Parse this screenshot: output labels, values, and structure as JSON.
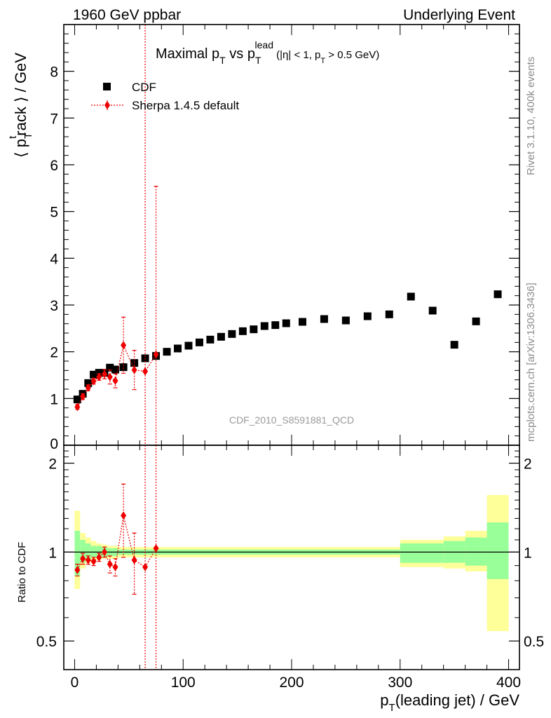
{
  "header": {
    "left": "1960 GeV ppbar",
    "right": "Underlying Event"
  },
  "side_labels": {
    "rivet": "Rivet 3.1.10,  400k events",
    "mcplots": "mcplots.cern.ch [arXiv:1306.3436]"
  },
  "chart_data": [
    {
      "type": "scatter",
      "title": {
        "prefix": "Maximal p",
        "sub1": "T",
        "mid": " vs p",
        "sub2": "T",
        "sup2": "lead",
        "cut": " (|η| < 1, p",
        "sub3": "T",
        "cut_end": " > 0.5 GeV)"
      },
      "ylabel": {
        "open": "⟨ p",
        "sub": "T",
        "sup": "t",
        "rest": "rack ⟩ / GeV"
      },
      "watermark": "CDF_2010_S8591881_QCD",
      "xlim": [
        -10,
        410
      ],
      "ylim": [
        0,
        9
      ],
      "yticks": [
        "1",
        "2",
        "3",
        "4",
        "5",
        "6",
        "7",
        "8"
      ],
      "ytick_values": [
        1,
        2,
        3,
        4,
        5,
        6,
        7,
        8
      ],
      "ytick_bottom_label": "0",
      "legend": {
        "position": "top-left",
        "entries": [
          "CDF",
          "Sherpa 1.4.5 default"
        ]
      },
      "series": [
        {
          "name": "CDF",
          "marker": "square",
          "color": "#000000",
          "x": [
            2.5,
            7.5,
            12.5,
            17.5,
            22.5,
            27.5,
            32.5,
            37.5,
            45,
            55,
            65,
            75,
            85,
            95,
            105,
            115,
            125,
            135,
            145,
            155,
            165,
            175,
            185,
            195,
            210,
            230,
            250,
            270,
            290,
            310,
            330,
            350,
            370,
            390
          ],
          "y": [
            0.98,
            1.1,
            1.33,
            1.51,
            1.55,
            1.55,
            1.66,
            1.62,
            1.67,
            1.76,
            1.86,
            1.91,
            2.0,
            2.07,
            2.13,
            2.2,
            2.26,
            2.32,
            2.38,
            2.44,
            2.48,
            2.55,
            2.57,
            2.61,
            2.64,
            2.7,
            2.67,
            2.76,
            2.8,
            3.18,
            2.88,
            2.15,
            2.65,
            3.23
          ]
        },
        {
          "name": "Sherpa 1.4.5 default",
          "marker": "diamond",
          "color": "#ee0000",
          "x": [
            2.5,
            7.5,
            12.5,
            17.5,
            22.5,
            27.5,
            32.5,
            37.5,
            45,
            55,
            65,
            75
          ],
          "y": [
            0.82,
            1.04,
            1.23,
            1.37,
            1.46,
            1.52,
            1.46,
            1.38,
            2.14,
            1.61,
            1.58,
            1.94
          ],
          "yerr": [
            0.05,
            0.06,
            0.06,
            0.06,
            0.07,
            0.1,
            0.15,
            0.15,
            0.6,
            0.42,
            30,
            3.6
          ]
        }
      ]
    },
    {
      "type": "scatter",
      "ylabel": "Ratio to CDF",
      "xlabel": {
        "main": "p",
        "sub": "T",
        "rest": "(leading jet) / GeV"
      },
      "xlim": [
        -10,
        410
      ],
      "ylim": [
        0.4,
        2.3
      ],
      "yscale": "log",
      "xticks": [
        "0",
        "100",
        "200",
        "300",
        "400"
      ],
      "xtick_values": [
        0,
        100,
        200,
        300,
        400
      ],
      "yticks": [
        "0.5",
        "1",
        "2"
      ],
      "ytick_values": [
        0.5,
        1,
        2
      ],
      "reference_line": 1,
      "bands": {
        "inner_color": "#99ff99",
        "outer_color": "#ffff99",
        "bins": [
          {
            "lo": 0,
            "hi": 5,
            "inner": [
              0.83,
              1.18
            ],
            "outer": [
              0.75,
              1.38
            ]
          },
          {
            "lo": 5,
            "hi": 10,
            "inner": [
              0.92,
              1.1
            ],
            "outer": [
              0.88,
              1.16
            ]
          },
          {
            "lo": 10,
            "hi": 15,
            "inner": [
              0.95,
              1.07
            ],
            "outer": [
              0.92,
              1.12
            ]
          },
          {
            "lo": 15,
            "hi": 20,
            "inner": [
              0.96,
              1.05
            ],
            "outer": [
              0.94,
              1.09
            ]
          },
          {
            "lo": 20,
            "hi": 25,
            "inner": [
              0.96,
              1.05
            ],
            "outer": [
              0.94,
              1.07
            ]
          },
          {
            "lo": 25,
            "hi": 30,
            "inner": [
              0.96,
              1.04
            ],
            "outer": [
              0.95,
              1.06
            ]
          },
          {
            "lo": 30,
            "hi": 35,
            "inner": [
              0.97,
              1.03
            ],
            "outer": [
              0.95,
              1.05
            ]
          },
          {
            "lo": 35,
            "hi": 40,
            "inner": [
              0.97,
              1.03
            ],
            "outer": [
              0.95,
              1.05
            ]
          },
          {
            "lo": 40,
            "hi": 300,
            "inner": [
              0.98,
              1.02
            ],
            "outer": [
              0.96,
              1.04
            ]
          },
          {
            "lo": 300,
            "hi": 340,
            "inner": [
              0.92,
              1.07
            ],
            "outer": [
              0.89,
              1.1
            ]
          },
          {
            "lo": 340,
            "hi": 360,
            "inner": [
              0.92,
              1.09
            ],
            "outer": [
              0.88,
              1.13
            ]
          },
          {
            "lo": 360,
            "hi": 380,
            "inner": [
              0.9,
              1.12
            ],
            "outer": [
              0.86,
              1.18
            ]
          },
          {
            "lo": 380,
            "hi": 400,
            "inner": [
              0.81,
              1.26
            ],
            "outer": [
              0.54,
              1.56
            ]
          }
        ]
      },
      "series": [
        {
          "name": "Sherpa 1.4.5 default",
          "marker": "diamond",
          "color": "#ee0000",
          "x": [
            2.5,
            7.5,
            12.5,
            17.5,
            22.5,
            27.5,
            32.5,
            37.5,
            45,
            55,
            65,
            75
          ],
          "y": [
            0.87,
            0.95,
            0.94,
            0.93,
            0.96,
            1.0,
            0.91,
            0.89,
            1.33,
            0.94,
            0.89,
            1.03
          ],
          "yerr": [
            0.04,
            0.04,
            0.03,
            0.03,
            0.03,
            0.04,
            0.06,
            0.06,
            0.37,
            0.22,
            10,
            10
          ]
        }
      ]
    }
  ]
}
